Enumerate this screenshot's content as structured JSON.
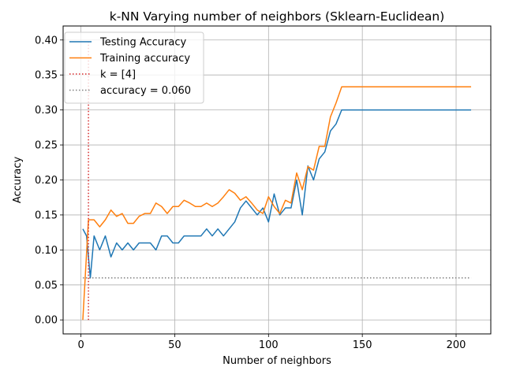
{
  "chart_data": {
    "type": "line",
    "title": "k-NN Varying number of neighbors (Sklearn-Euclidean)",
    "xlabel": "Number of neighbors",
    "ylabel": "Accuracy",
    "xlim": [
      -9.5,
      218.5
    ],
    "ylim": [
      -0.02,
      0.42
    ],
    "xticks": [
      0,
      50,
      100,
      150,
      200
    ],
    "xtick_labels": [
      "0",
      "50",
      "100",
      "150",
      "200"
    ],
    "yticks": [
      0.0,
      0.05,
      0.1,
      0.15,
      0.2,
      0.25,
      0.3,
      0.35,
      0.4
    ],
    "ytick_labels": [
      "0.00",
      "0.05",
      "0.10",
      "0.15",
      "0.20",
      "0.25",
      "0.30",
      "0.35",
      "0.40"
    ],
    "grid": true,
    "legend_position": "top-left",
    "series": [
      {
        "name": "Testing Accuracy",
        "color": "#1f77b4",
        "style": "solid",
        "x": [
          1,
          3,
          5,
          7,
          10,
          13,
          16,
          19,
          22,
          25,
          28,
          31,
          34,
          37,
          40,
          43,
          46,
          49,
          52,
          55,
          58,
          61,
          64,
          67,
          70,
          73,
          76,
          79,
          82,
          85,
          88,
          91,
          94,
          97,
          100,
          103,
          106,
          109,
          112,
          115,
          118,
          121,
          124,
          127,
          130,
          133,
          136,
          139,
          142,
          208
        ],
        "y": [
          0.13,
          0.12,
          0.06,
          0.12,
          0.1,
          0.12,
          0.09,
          0.11,
          0.1,
          0.11,
          0.1,
          0.11,
          0.11,
          0.11,
          0.1,
          0.12,
          0.12,
          0.11,
          0.11,
          0.12,
          0.12,
          0.12,
          0.12,
          0.13,
          0.12,
          0.13,
          0.12,
          0.13,
          0.14,
          0.16,
          0.17,
          0.16,
          0.15,
          0.16,
          0.14,
          0.18,
          0.15,
          0.16,
          0.16,
          0.2,
          0.15,
          0.22,
          0.2,
          0.23,
          0.24,
          0.27,
          0.28,
          0.3,
          0.3,
          0.3
        ]
      },
      {
        "name": "Training accuracy",
        "color": "#ff7f0e",
        "style": "solid",
        "x": [
          1,
          4,
          7,
          10,
          13,
          16,
          19,
          22,
          25,
          28,
          31,
          34,
          37,
          40,
          43,
          46,
          49,
          52,
          55,
          58,
          61,
          64,
          67,
          70,
          73,
          76,
          79,
          82,
          85,
          88,
          91,
          94,
          97,
          100,
          103,
          106,
          109,
          112,
          115,
          118,
          121,
          124,
          127,
          130,
          133,
          136,
          139,
          142,
          208
        ],
        "y": [
          0.0,
          0.143,
          0.143,
          0.133,
          0.143,
          0.157,
          0.148,
          0.152,
          0.138,
          0.138,
          0.148,
          0.152,
          0.152,
          0.167,
          0.162,
          0.152,
          0.162,
          0.162,
          0.171,
          0.167,
          0.162,
          0.162,
          0.167,
          0.162,
          0.167,
          0.176,
          0.186,
          0.181,
          0.171,
          0.176,
          0.167,
          0.157,
          0.152,
          0.176,
          0.162,
          0.152,
          0.171,
          0.167,
          0.21,
          0.186,
          0.219,
          0.214,
          0.248,
          0.248,
          0.29,
          0.31,
          0.333,
          0.333,
          0.333
        ]
      },
      {
        "name": "k = [4]",
        "color": "#d62728",
        "style": "dotted",
        "x": [
          4,
          4
        ],
        "y": [
          0.0,
          0.4
        ]
      },
      {
        "name": "accuracy = 0.060",
        "color": "#7f7f7f",
        "style": "dotted",
        "x": [
          1,
          208
        ],
        "y": [
          0.06,
          0.06
        ]
      }
    ]
  }
}
